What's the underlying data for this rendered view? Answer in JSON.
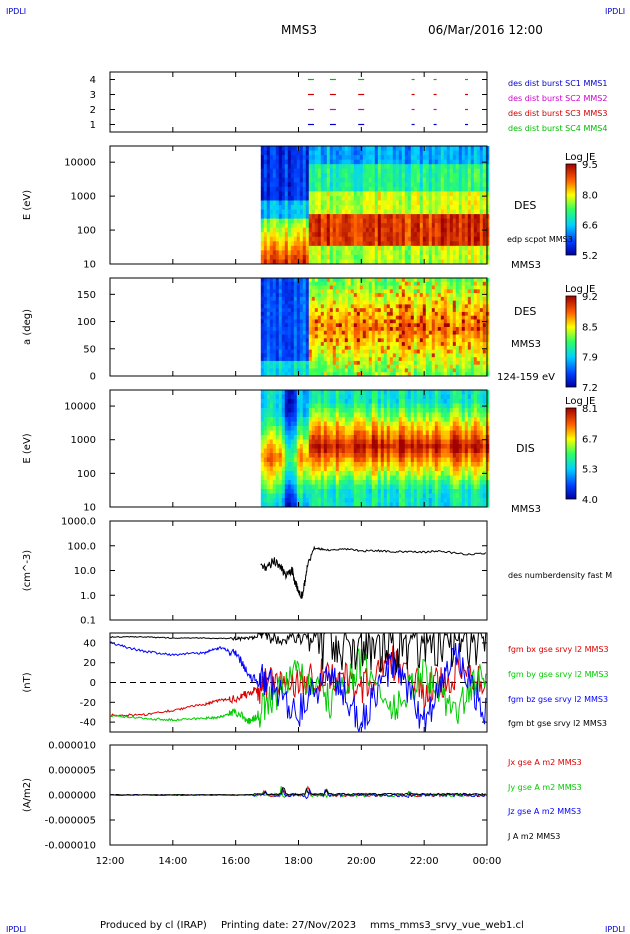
{
  "header": {
    "corner_left_top": "IPDLI",
    "corner_right_top": "IPDLI",
    "corner_left_bottom": "IPDLI",
    "corner_right_bottom": "IPDLI",
    "spacecraft": "MMS3",
    "datetime": "06/Mar/2016 12:00"
  },
  "footer": {
    "produced_by": "Produced by cl (IRAP)",
    "printing_date": "Printing date: 27/Nov/2023",
    "file": "mms_mms3_srvy_vue_web1.cl"
  },
  "colors": {
    "mms1": "#0000cc",
    "mms2": "#cc00cc",
    "mms3": "#cc0000",
    "mms4": "#00bb00",
    "bx": "#dd0000",
    "by": "#00cc00",
    "bz": "#0000ff",
    "bt": "#000000"
  },
  "chart_data": [
    {
      "type": "scatter",
      "ylabel": "",
      "ylim": [
        0.5,
        4.5
      ],
      "yticks": [
        "1",
        "2",
        "3",
        "4"
      ],
      "legend_placement": "right",
      "series": [
        {
          "name": "des dist burst SC1 MMS1",
          "y": 1,
          "color_key": "mms1",
          "x_hours": [
            18.3,
            19.0,
            19.9,
            21.6,
            22.3,
            23.3
          ]
        },
        {
          "name": "des dist burst SC2 MMS2",
          "y": 2,
          "color_key": "mms2",
          "x_hours": [
            18.3,
            19.0,
            19.9,
            21.6,
            22.3,
            23.3
          ]
        },
        {
          "name": "des dist burst SC3 MMS3",
          "y": 3,
          "color_key": "mms3",
          "x_hours": [
            18.3,
            19.0,
            19.9,
            21.6,
            22.3,
            23.3
          ]
        },
        {
          "name": "des dist burst SC4 MMS4",
          "y": 4,
          "color_key": "mms4",
          "x_hours": [
            18.3,
            19.0,
            19.9,
            21.6,
            22.3,
            23.3
          ]
        }
      ]
    },
    {
      "type": "heatmap",
      "ylabel": "E (eV)",
      "yscale": "log",
      "ylim": [
        10,
        30000
      ],
      "yticks": [
        "10",
        "100",
        "1000",
        "10000"
      ],
      "data_start_hour": 16.8,
      "right_labels": [
        "DES",
        "edp scpot MMS3",
        "MMS3"
      ],
      "colorbar": {
        "title": "Log JE",
        "ticks": [
          "9.5",
          "8.0",
          "6.6",
          "5.2"
        ],
        "range": [
          5.2,
          9.5
        ]
      }
    },
    {
      "type": "heatmap",
      "ylabel": "a (deg)",
      "ylim": [
        0,
        180
      ],
      "yticks": [
        "0",
        "50",
        "100",
        "150"
      ],
      "data_start_hour": 16.8,
      "right_labels": [
        "DES",
        "MMS3",
        "124-159 eV"
      ],
      "colorbar": {
        "title": "Log JE",
        "ticks": [
          "9.2",
          "8.5",
          "7.9",
          "7.2"
        ],
        "range": [
          7.2,
          9.2
        ]
      }
    },
    {
      "type": "heatmap",
      "ylabel": "E (eV)",
      "yscale": "log",
      "ylim": [
        10,
        30000
      ],
      "yticks": [
        "10",
        "100",
        "1000",
        "10000"
      ],
      "data_start_hour": 16.8,
      "right_labels": [
        "DIS",
        "MMS3"
      ],
      "colorbar": {
        "title": "Log JE",
        "ticks": [
          "8.1",
          "6.7",
          "5.3",
          "4.0"
        ],
        "range": [
          4.0,
          8.1
        ]
      }
    },
    {
      "type": "line",
      "ylabel": "(cm^-3)",
      "yscale": "log",
      "ylim": [
        0.1,
        1000
      ],
      "yticks": [
        "0.1",
        "1.0",
        "10.0",
        "100.0",
        "1000.0"
      ],
      "series": [
        {
          "name": "des numberdensity fast M",
          "color_key": "bt",
          "x_hours": [
            16.8,
            17.0,
            17.2,
            17.4,
            17.6,
            17.8,
            17.9,
            18.0,
            18.1,
            18.2,
            18.3,
            18.5,
            18.8,
            19.2,
            19.6,
            20.0,
            20.5,
            21.0,
            21.5,
            22.0,
            22.5,
            23.0,
            23.5,
            24.0
          ],
          "y": [
            20,
            12,
            25,
            15,
            6,
            10,
            3,
            1.5,
            0.9,
            3,
            20,
            80,
            70,
            65,
            75,
            60,
            65,
            55,
            60,
            55,
            62,
            50,
            45,
            50
          ]
        }
      ]
    },
    {
      "type": "line",
      "ylabel": "(nT)",
      "ylim": [
        -50,
        50
      ],
      "yticks": [
        "-40",
        "-20",
        "0",
        "20",
        "40"
      ],
      "series": [
        {
          "name": "fgm bx gse srvy l2 MMS3",
          "color_key": "bx",
          "x_hours": [
            12,
            13,
            14,
            15,
            15.5,
            16,
            16.5,
            17,
            18,
            19,
            20,
            21,
            22,
            23,
            24
          ],
          "y": [
            -33,
            -33,
            -28,
            -22,
            -18,
            -16,
            -10,
            -2,
            2,
            10,
            -5,
            20,
            -10,
            10,
            5
          ]
        },
        {
          "name": "fgm by gse srvy l2 MMS3",
          "color_key": "by",
          "x_hours": [
            12,
            13,
            14,
            15,
            15.5,
            16,
            16.5,
            17,
            18,
            19,
            20,
            21,
            22,
            23,
            24
          ],
          "y": [
            -33,
            -36,
            -38,
            -36,
            -35,
            -30,
            -40,
            -20,
            10,
            -20,
            20,
            -30,
            10,
            -30,
            15
          ]
        },
        {
          "name": "fgm bz gse srvy l2 MMS3",
          "color_key": "bz",
          "x_hours": [
            12,
            13,
            14,
            15,
            15.5,
            16,
            16.5,
            17,
            18,
            19,
            20,
            21,
            22,
            23,
            24
          ],
          "y": [
            40,
            32,
            28,
            30,
            35,
            30,
            5,
            0,
            -30,
            10,
            -40,
            20,
            -40,
            30,
            -35
          ]
        },
        {
          "name": "fgm bt gse srvy l2 MMS3",
          "color_key": "bt",
          "x_hours": [
            12,
            13,
            14,
            15,
            16,
            16.5,
            17,
            18,
            19,
            20,
            21,
            22,
            23,
            24
          ],
          "y": [
            46,
            46,
            45,
            45,
            44,
            45,
            46,
            45,
            48,
            48,
            48,
            48,
            48,
            48
          ]
        }
      ]
    },
    {
      "type": "line",
      "ylabel": "(A/m2)",
      "ylim": [
        -1e-05,
        1e-05
      ],
      "yticks": [
        "-0.000010",
        "-0.000005",
        "0.000000",
        "0.000005",
        "0.000010"
      ],
      "series": [
        {
          "name": "Jx gse A m2 MMS3",
          "color_key": "bx"
        },
        {
          "name": "Jy gse A m2 MMS3",
          "color_key": "by"
        },
        {
          "name": "Jz gse A m2 MMS3",
          "color_key": "bz"
        },
        {
          "name": "J A m2 MMS3",
          "color_key": "bt"
        }
      ]
    }
  ],
  "x_axis": {
    "ticks": [
      "12:00",
      "14:00",
      "16:00",
      "18:00",
      "20:00",
      "22:00",
      "00:00"
    ],
    "range_hours": [
      12,
      24
    ]
  }
}
